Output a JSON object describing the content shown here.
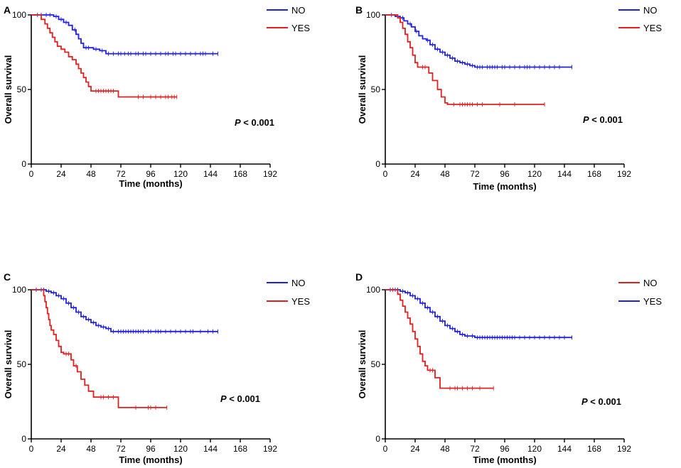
{
  "colors": {
    "blue": "#2020e0",
    "red": "#e02020",
    "axis": "#000000"
  },
  "chart_data": [
    {
      "type": "line",
      "panel_label": "A",
      "xlabel": "Time (months)",
      "ylabel": "Overall survival",
      "xlim": [
        0,
        192
      ],
      "ylim": [
        0,
        100
      ],
      "xticks": [
        "0",
        "24",
        "48",
        "72",
        "96",
        "120",
        "144",
        "168",
        "192"
      ],
      "yticks": [
        "0",
        "50",
        "100"
      ],
      "annotation": {
        "italic": "P",
        "rest": " < 0.001"
      },
      "series": [
        {
          "name": "NO",
          "color": "blue",
          "end": 150,
          "steps": [
            [
              0,
              100
            ],
            [
              18,
              99
            ],
            [
              22,
              97
            ],
            [
              26,
              95
            ],
            [
              30,
              93
            ],
            [
              33,
              90
            ],
            [
              36,
              87
            ],
            [
              38,
              84
            ],
            [
              40,
              81
            ],
            [
              42,
              78
            ],
            [
              50,
              77
            ],
            [
              55,
              76
            ],
            [
              60,
              74
            ],
            [
              150,
              74
            ]
          ],
          "censor": [
            5,
            8,
            12,
            15,
            20,
            24,
            28,
            35,
            44,
            46,
            52,
            57,
            62,
            66,
            70,
            72,
            75,
            78,
            80,
            84,
            86,
            90,
            92,
            96,
            100,
            104,
            108,
            110,
            114,
            116,
            120,
            124,
            128,
            132,
            136,
            138,
            140,
            146,
            150
          ]
        },
        {
          "name": "YES",
          "color": "red",
          "end": 117,
          "steps": [
            [
              0,
              100
            ],
            [
              8,
              97
            ],
            [
              11,
              94
            ],
            [
              13,
              91
            ],
            [
              15,
              88
            ],
            [
              17,
              85
            ],
            [
              19,
              82
            ],
            [
              21,
              79
            ],
            [
              24,
              77
            ],
            [
              27,
              75
            ],
            [
              30,
              72
            ],
            [
              33,
              70
            ],
            [
              36,
              67
            ],
            [
              38,
              64
            ],
            [
              40,
              61
            ],
            [
              42,
              58
            ],
            [
              44,
              55
            ],
            [
              46,
              52
            ],
            [
              48,
              49
            ],
            [
              70,
              45
            ],
            [
              117,
              45
            ]
          ],
          "censor": [
            52,
            54,
            56,
            58,
            60,
            62,
            64,
            66,
            86,
            90,
            96,
            100,
            104,
            108,
            110,
            113,
            115,
            117
          ]
        }
      ],
      "legend_order": [
        "NO",
        "YES"
      ]
    },
    {
      "type": "line",
      "panel_label": "B",
      "xlabel": "Time (months)",
      "ylabel": "Overall survival",
      "xlim": [
        0,
        192
      ],
      "ylim": [
        0,
        100
      ],
      "xticks": [
        "0",
        "24",
        "48",
        "72",
        "96",
        "120",
        "144",
        "168",
        "192"
      ],
      "yticks": [
        "0",
        "50",
        "100"
      ],
      "annotation": {
        "italic": "P",
        "rest": " < 0.001"
      },
      "series": [
        {
          "name": "NO",
          "color": "blue",
          "end": 150,
          "steps": [
            [
              0,
              100
            ],
            [
              8,
              99
            ],
            [
              12,
              98
            ],
            [
              15,
              96
            ],
            [
              18,
              94
            ],
            [
              21,
              92
            ],
            [
              24,
              89
            ],
            [
              27,
              86
            ],
            [
              30,
              84
            ],
            [
              33,
              83
            ],
            [
              36,
              80
            ],
            [
              40,
              77
            ],
            [
              44,
              75
            ],
            [
              48,
              73
            ],
            [
              52,
              71
            ],
            [
              56,
              69
            ],
            [
              60,
              68
            ],
            [
              64,
              67
            ],
            [
              68,
              66
            ],
            [
              72,
              65
            ],
            [
              150,
              65
            ]
          ],
          "censor": [
            5,
            10,
            14,
            20,
            25,
            34,
            38,
            42,
            46,
            50,
            54,
            58,
            62,
            66,
            70,
            74,
            76,
            78,
            82,
            84,
            86,
            88,
            90,
            94,
            96,
            100,
            104,
            108,
            112,
            114,
            116,
            120,
            124,
            128,
            132,
            136,
            140,
            150
          ]
        },
        {
          "name": "YES",
          "color": "red",
          "end": 128,
          "steps": [
            [
              0,
              100
            ],
            [
              10,
              98
            ],
            [
              12,
              95
            ],
            [
              14,
              91
            ],
            [
              16,
              87
            ],
            [
              18,
              82
            ],
            [
              20,
              78
            ],
            [
              22,
              73
            ],
            [
              24,
              68
            ],
            [
              26,
              65
            ],
            [
              35,
              61
            ],
            [
              38,
              56
            ],
            [
              42,
              50
            ],
            [
              45,
              45
            ],
            [
              48,
              41
            ],
            [
              50,
              40
            ],
            [
              128,
              40
            ]
          ],
          "censor": [
            30,
            32,
            55,
            60,
            62,
            64,
            66,
            68,
            70,
            74,
            78,
            92,
            104,
            128
          ]
        }
      ],
      "legend_order": [
        "NO",
        "YES"
      ]
    },
    {
      "type": "line",
      "panel_label": "C",
      "xlabel": "Time (months)",
      "ylabel": "Overall survival",
      "xlim": [
        0,
        192
      ],
      "ylim": [
        0,
        100
      ],
      "xticks": [
        "0",
        "24",
        "48",
        "72",
        "96",
        "120",
        "144",
        "168",
        "192"
      ],
      "yticks": [
        "0",
        "50",
        "100"
      ],
      "annotation": {
        "italic": "P",
        "rest": " < 0.001"
      },
      "series": [
        {
          "name": "NO",
          "color": "blue",
          "end": 150,
          "steps": [
            [
              0,
              100
            ],
            [
              12,
              99
            ],
            [
              16,
              98
            ],
            [
              20,
              96
            ],
            [
              24,
              94
            ],
            [
              28,
              91
            ],
            [
              32,
              88
            ],
            [
              36,
              85
            ],
            [
              40,
              82
            ],
            [
              44,
              80
            ],
            [
              48,
              78
            ],
            [
              52,
              76
            ],
            [
              56,
              75
            ],
            [
              60,
              74
            ],
            [
              64,
              72
            ],
            [
              150,
              72
            ]
          ],
          "censor": [
            4,
            8,
            10,
            14,
            18,
            22,
            26,
            30,
            34,
            38,
            42,
            46,
            50,
            54,
            58,
            62,
            66,
            70,
            72,
            74,
            76,
            78,
            80,
            82,
            84,
            86,
            88,
            90,
            94,
            96,
            100,
            102,
            104,
            108,
            112,
            116,
            120,
            124,
            128,
            130,
            136,
            142,
            146,
            150
          ]
        },
        {
          "name": "YES",
          "color": "red",
          "end": 109,
          "steps": [
            [
              0,
              100
            ],
            [
              10,
              96
            ],
            [
              11,
              92
            ],
            [
              12,
              88
            ],
            [
              13,
              84
            ],
            [
              14,
              80
            ],
            [
              15,
              76
            ],
            [
              16,
              73
            ],
            [
              18,
              70
            ],
            [
              20,
              66
            ],
            [
              22,
              62
            ],
            [
              24,
              58
            ],
            [
              26,
              57
            ],
            [
              32,
              53
            ],
            [
              34,
              49
            ],
            [
              37,
              45
            ],
            [
              40,
              40
            ],
            [
              43,
              36
            ],
            [
              46,
              32
            ],
            [
              50,
              28
            ],
            [
              70,
              21
            ],
            [
              109,
              21
            ]
          ],
          "censor": [
            28,
            30,
            36,
            56,
            58,
            62,
            66,
            84,
            94,
            96,
            100,
            109
          ]
        }
      ],
      "legend_order": [
        "NO",
        "YES"
      ]
    },
    {
      "type": "line",
      "panel_label": "D",
      "xlabel": "Time (months)",
      "ylabel": "Overall survival",
      "xlim": [
        0,
        192
      ],
      "ylim": [
        0,
        100
      ],
      "xticks": [
        "0",
        "24",
        "48",
        "72",
        "96",
        "120",
        "144",
        "168",
        "192"
      ],
      "yticks": [
        "0",
        "50",
        "100"
      ],
      "annotation": {
        "italic": "P",
        "rest": " < 0.001"
      },
      "series": [
        {
          "name": "YES",
          "color": "blue",
          "end": 150,
          "steps": [
            [
              0,
              100
            ],
            [
              12,
              99
            ],
            [
              16,
              98
            ],
            [
              20,
              96
            ],
            [
              24,
              94
            ],
            [
              28,
              91
            ],
            [
              32,
              88
            ],
            [
              36,
              85
            ],
            [
              40,
              82
            ],
            [
              44,
              79
            ],
            [
              48,
              76
            ],
            [
              52,
              74
            ],
            [
              56,
              72
            ],
            [
              60,
              70
            ],
            [
              64,
              69
            ],
            [
              72,
              68
            ],
            [
              150,
              68
            ]
          ],
          "censor": [
            4,
            8,
            10,
            14,
            18,
            22,
            26,
            30,
            34,
            38,
            42,
            46,
            50,
            54,
            58,
            62,
            66,
            70,
            74,
            76,
            78,
            80,
            82,
            84,
            86,
            88,
            90,
            92,
            94,
            96,
            98,
            100,
            102,
            104,
            108,
            112,
            116,
            120,
            124,
            128,
            132,
            136,
            140,
            144,
            150
          ]
        },
        {
          "name": "NO",
          "color": "red",
          "end": 87,
          "steps": [
            [
              0,
              100
            ],
            [
              10,
              97
            ],
            [
              12,
              93
            ],
            [
              14,
              89
            ],
            [
              16,
              85
            ],
            [
              18,
              81
            ],
            [
              20,
              77
            ],
            [
              22,
              72
            ],
            [
              24,
              67
            ],
            [
              26,
              62
            ],
            [
              28,
              57
            ],
            [
              30,
              52
            ],
            [
              32,
              49
            ],
            [
              34,
              46
            ],
            [
              40,
              41
            ],
            [
              44,
              34
            ],
            [
              87,
              34
            ]
          ],
          "censor": [
            6,
            36,
            38,
            52,
            56,
            58,
            62,
            66,
            70,
            76,
            87
          ]
        }
      ],
      "legend_order": [
        "NO",
        "YES"
      ]
    }
  ]
}
